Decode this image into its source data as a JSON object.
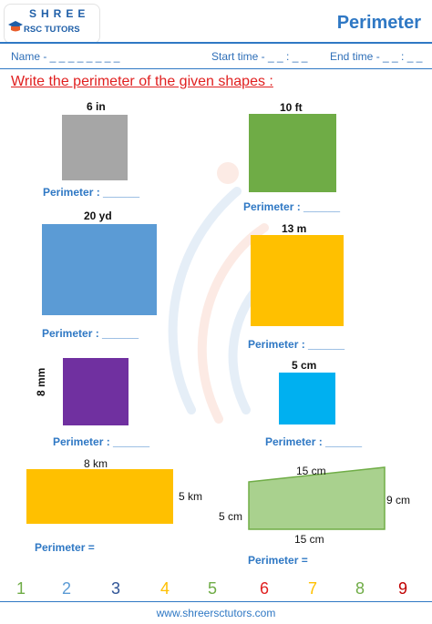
{
  "header": {
    "logo_line1": "SHREE",
    "logo_line2": "RSC TUTORS",
    "page_title": "Perimeter"
  },
  "meta": {
    "name": "Name - _ _ _ _ _ _ _ _",
    "start_time": "Start time - _ _ : _ _",
    "end_time": "End time - _ _ : _ _"
  },
  "instruction": "Write the perimeter of the given shapes :",
  "shapes": [
    {
      "dims": [
        "6 in"
      ],
      "color": "#a6a6a6",
      "answer": "Perimeter : ______"
    },
    {
      "dims": [
        "10 ft"
      ],
      "color": "#6fac46",
      "answer": "Perimeter : ______"
    },
    {
      "dims": [
        "20 yd"
      ],
      "color": "#5b9bd5",
      "answer": "Perimeter : ______"
    },
    {
      "dims": [
        "13 m"
      ],
      "color": "#ffc000",
      "answer": "Perimeter : ______"
    },
    {
      "dims": [
        "8 mm"
      ],
      "color": "#7030a0",
      "answer": "Perimeter : ______"
    },
    {
      "dims": [
        "5 cm"
      ],
      "color": "#00b0f0",
      "answer": "Perimeter : ______"
    },
    {
      "dims": [
        "8 km",
        "5 km"
      ],
      "color": "#ffc000",
      "answer": "Perimeter ="
    },
    {
      "dims": [
        "15 cm",
        "9 cm",
        "5 cm",
        "15 cm"
      ],
      "color": "#a9d18e",
      "answer": "Perimeter ="
    }
  ],
  "digits": [
    {
      "value": "1",
      "color": "#6fac46"
    },
    {
      "value": "2",
      "color": "#5b9bd5"
    },
    {
      "value": "3",
      "color": "#2f5496"
    },
    {
      "value": "4",
      "color": "#ffc000"
    },
    {
      "value": "5",
      "color": "#6fac46"
    },
    {
      "value": "6",
      "color": "#e02020"
    },
    {
      "value": "7",
      "color": "#ffc000"
    },
    {
      "value": "8",
      "color": "#6fac46"
    },
    {
      "value": "9",
      "color": "#c00000"
    }
  ],
  "footer": "www.shreersctutors.com"
}
